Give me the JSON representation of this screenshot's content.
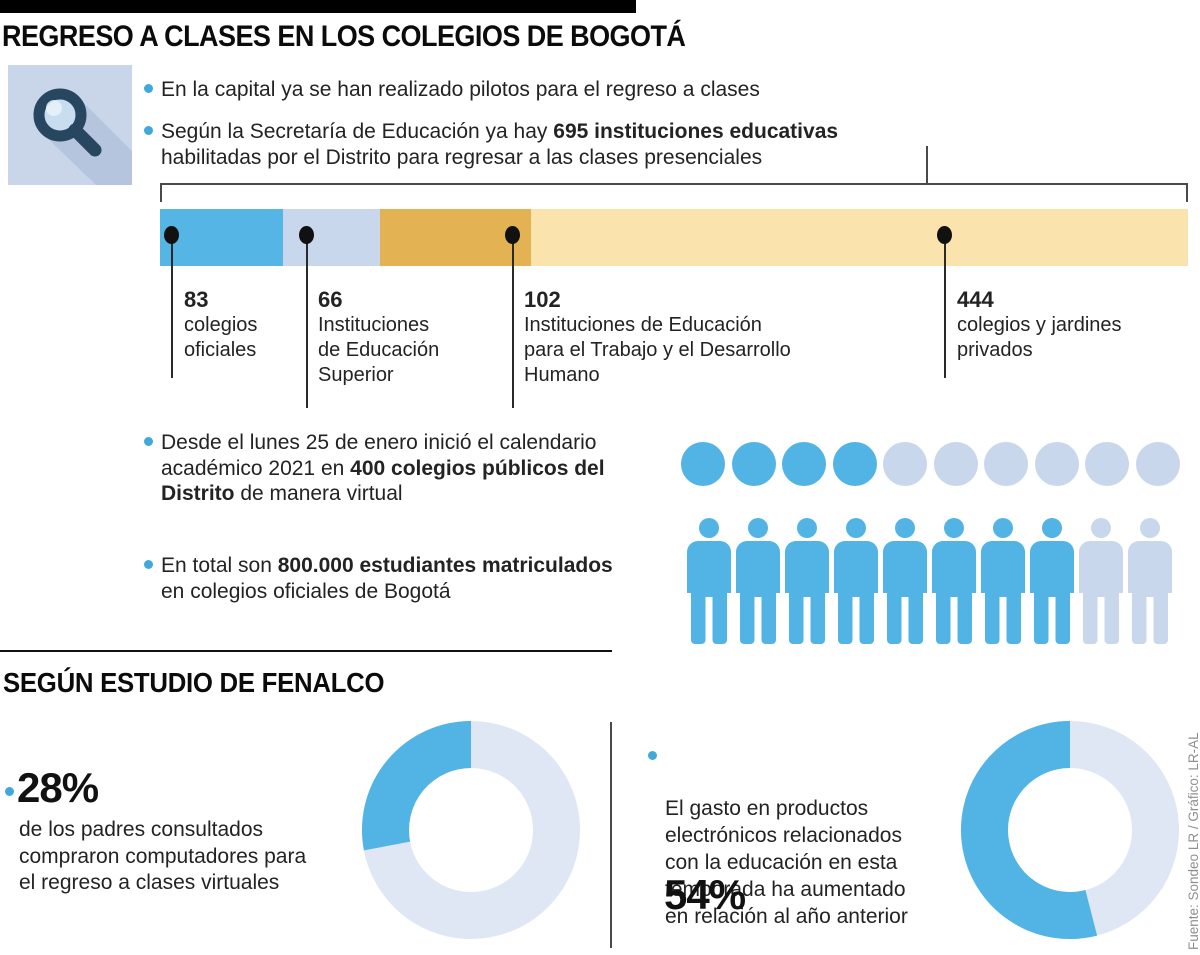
{
  "header": {
    "title": "REGRESO A CLASES EN LOS COLEGIOS DE BOGOTÁ"
  },
  "colors": {
    "blue": "#52B4E4",
    "bullet_blue": "#3FA9DC",
    "lavender": "#C9D7EC",
    "donut_light": "#DFE7F5",
    "gold": "#E2B253",
    "cream": "#FBE3AD",
    "icon_bg": "#C9D6EA",
    "icon_shadow": "#B6C5DE",
    "icon_navy": "#27465F",
    "icon_lens": "#C8DEF0"
  },
  "intro": {
    "bullets": [
      {
        "text": "En la capital ya se han realizado pilotos para el regreso a clases"
      },
      {
        "pre": "Según la Secretaría de Educación ya hay ",
        "bold": "695 instituciones educativas",
        "line2": "habilitadas por el Distrito para regresar a las clases presenciales"
      }
    ]
  },
  "institutions_chart": {
    "total": 695,
    "segments": [
      {
        "value": 83,
        "label_lines": [
          "colegios",
          "oficiales"
        ],
        "color": "#55B6E6"
      },
      {
        "value": 66,
        "label_lines": [
          "Instituciones",
          "de Educación",
          "Superior"
        ],
        "color": "#C9D7EC"
      },
      {
        "value": 102,
        "label_lines": [
          "Instituciones de Educación",
          "para el Trabajo y el Desarrollo",
          "Humano"
        ],
        "color": "#E2B253"
      },
      {
        "value": 444,
        "label_lines": [
          "colegios y jardines",
          "privados"
        ],
        "color": "#FBE3AD"
      }
    ]
  },
  "calendar_bullet": {
    "line1": "Desde el lunes 25 de enero inició el calendario",
    "line2_pre": "académico 2021 en ",
    "line2_bold": "400 colegios públicos del",
    "line3_bold": "Distrito",
    "line3_post": " de manera virtual"
  },
  "circles_pictogram": {
    "units": 10,
    "filled": 4
  },
  "students_bullet": {
    "pre": "En total son ",
    "bold": "800.000 estudiantes matriculados",
    "line2": "en colegios oficiales de  Bogotá"
  },
  "persons_pictogram": {
    "units": 10,
    "filled": 8
  },
  "fenalco": {
    "heading": "SEGÚN ESTUDIO DE FENALCO",
    "left": {
      "pct": "28%",
      "pct_value": 28,
      "lines": [
        "de los padres consultados",
        "compraron computadores para",
        "el regreso a clases virtuales"
      ]
    },
    "right": {
      "lines": [
        "El gasto en productos",
        "electrónicos relacionados",
        "con la educación en esta",
        "temporada ha aumentado",
        "en relación al año anterior"
      ],
      "pct": "54%",
      "pct_value": 54
    }
  },
  "source": "Fuente: Sondeo LR / Gráfico: LR-AL",
  "chart_data": [
    {
      "type": "bar",
      "variant": "horizontal-stacked",
      "title": "695 instituciones educativas habilitadas por el Distrito para regresar a las clases presenciales",
      "categories": [
        "colegios oficiales",
        "Instituciones de Educación Superior",
        "Instituciones de Educación para el Trabajo y el Desarrollo Humano",
        "colegios y jardines privados"
      ],
      "values": [
        83,
        66,
        102,
        444
      ],
      "total": 695,
      "colors": [
        "#55B6E6",
        "#C9D7EC",
        "#E2B253",
        "#FBE3AD"
      ],
      "legend_position": "below-with-leader-lines"
    },
    {
      "type": "pictogram",
      "shape": "circle",
      "units": 10,
      "filled": 4,
      "represents": "400 colegios públicos del Distrito iniciaron el calendario académico 2021 de manera virtual"
    },
    {
      "type": "pictogram",
      "shape": "person",
      "units": 10,
      "filled": 8,
      "represents": "800.000 estudiantes matriculados en colegios oficiales de Bogotá"
    },
    {
      "type": "pie",
      "variant": "donut",
      "values": [
        28,
        72
      ],
      "label": "28%",
      "caption": "de los padres consultados compraron computadores para el regreso a clases virtuales",
      "start": "top",
      "direction": "counterclockwise"
    },
    {
      "type": "pie",
      "variant": "donut",
      "values": [
        54,
        46
      ],
      "label": "54%",
      "caption": "El gasto en productos electrónicos relacionados con la educación en esta temporada ha aumentado en relación al año anterior",
      "start": "top",
      "direction": "counterclockwise"
    }
  ]
}
